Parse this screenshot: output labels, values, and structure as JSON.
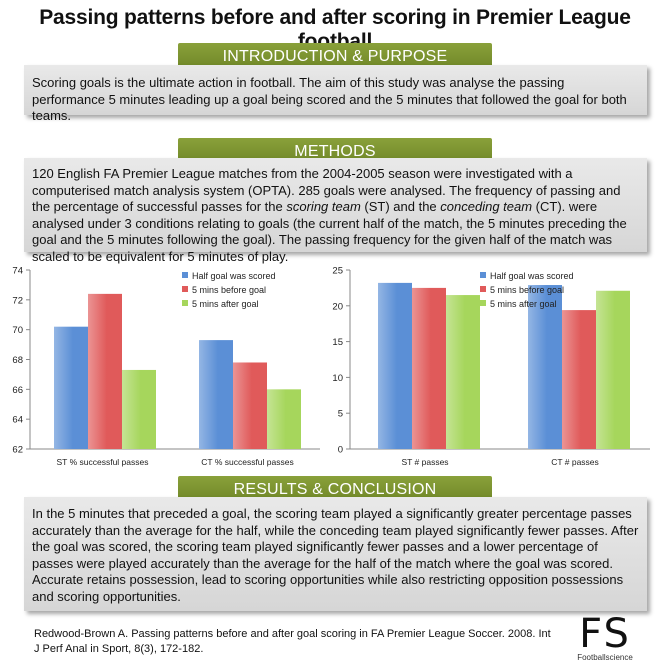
{
  "title": "Passing patterns before and after scoring in Premier League football",
  "intro": {
    "heading": "INTRODUCTION & PURPOSE",
    "text": "Scoring goals is the ultimate action in football. The aim of this study was analyse the passing performance 5 minutes leading up a goal being scored and the 5 minutes that followed the goal for both teams."
  },
  "methods": {
    "heading": "METHODS",
    "text_1": "120 English FA Premier League matches from the 2004-2005 season were investigated with a computerised match analysis system (OPTA). 285 goals were analysed. The frequency of passing and the percentage of successful passes for the ",
    "scoring_team": "scoring team",
    "text_2": " (ST) and the ",
    "conceding_team": "conceding team",
    "text_3": " (CT). were analysed under 3 conditions relating to goals (the current half of the match, the 5 minutes preceding the goal and the 5 minutes following the goal). The passing frequency for the given half of the match was scaled to be equivalent for 5 minutes of play."
  },
  "chart_data": [
    {
      "type": "bar",
      "categories": [
        "ST % successful passes",
        "CT % successful passes"
      ],
      "series": [
        {
          "name": "Half goal was scored",
          "values": [
            70.2,
            69.3
          ],
          "color": "#5b8fd6"
        },
        {
          "name": "5 mins before goal",
          "values": [
            72.4,
            67.8
          ],
          "color": "#e05a5a"
        },
        {
          "name": "5 mins after goal",
          "values": [
            67.3,
            66.0
          ],
          "color": "#a6d65c"
        }
      ],
      "ylim": [
        62,
        74
      ],
      "yticks": [
        62,
        64,
        66,
        68,
        70,
        72,
        74
      ],
      "legend": "top-right",
      "grid": false
    },
    {
      "type": "bar",
      "categories": [
        "ST # passes",
        "CT # passes"
      ],
      "series": [
        {
          "name": "Half goal was scored",
          "values": [
            23.2,
            22.9
          ],
          "color": "#5b8fd6"
        },
        {
          "name": "5 mins before goal",
          "values": [
            22.5,
            19.4
          ],
          "color": "#e05a5a"
        },
        {
          "name": "5 mins after goal",
          "values": [
            21.5,
            22.1
          ],
          "color": "#a6d65c"
        }
      ],
      "ylim": [
        0,
        25
      ],
      "yticks": [
        0,
        5,
        10,
        15,
        20,
        25
      ],
      "legend": "top-right",
      "grid": false
    }
  ],
  "results": {
    "heading": "RESULTS & CONCLUSION",
    "text": "In the 5 minutes that preceded a goal, the scoring team played a significantly greater percentage passes accurately than the average for the half, while the conceding team played significantly fewer passes. After the goal was scored, the scoring team played significantly fewer passes and a lower percentage of passes were played accurately than the average for the half of the match where the goal was scored. Accurate retains possession, lead to scoring opportunities while also restricting opposition possessions and scoring opportunities."
  },
  "reference": "Redwood-Brown A. Passing patterns before and after goal scoring in FA Premier League Soccer. 2008. Int J Perf Anal in Sport, 8(3), 172-182.",
  "logo": {
    "mark": "FS",
    "subtitle": "Footballscience"
  }
}
